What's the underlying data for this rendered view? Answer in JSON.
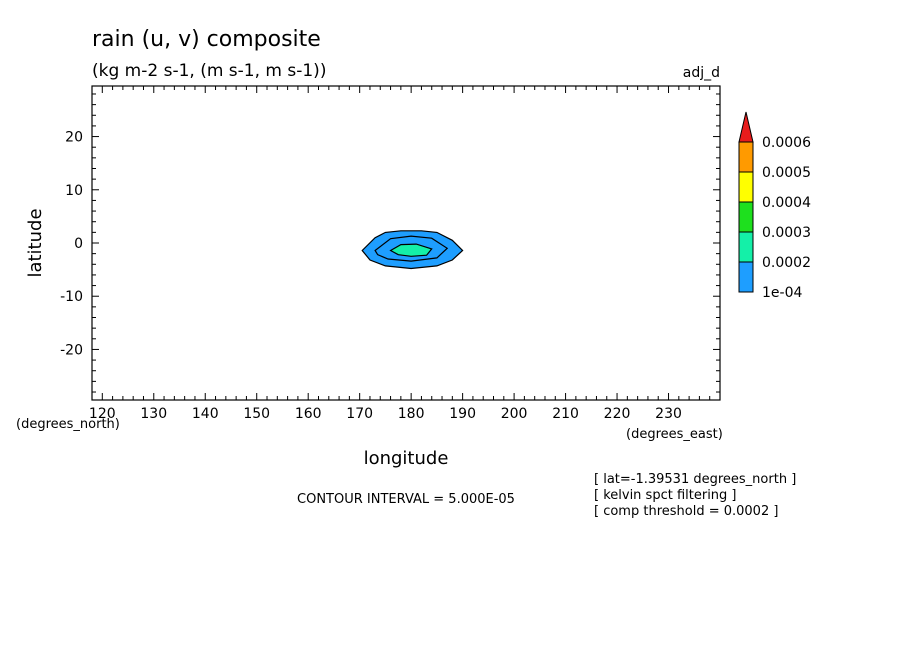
{
  "chart_data": {
    "type": "heatmap",
    "title": "rain (u, v) composite",
    "subtitle": "(kg m-2 s-1, (m s-1, m s-1))",
    "tag": "adj_d",
    "xlabel": "longitude",
    "ylabel": "latitude",
    "x_units": "(degrees_east)",
    "y_units": "(degrees_north)",
    "xlim": [
      118,
      240
    ],
    "ylim": [
      -29.5,
      29.5
    ],
    "x_ticks": [
      120,
      130,
      140,
      150,
      160,
      170,
      180,
      190,
      200,
      210,
      220,
      230
    ],
    "y_ticks": [
      20,
      10,
      0,
      -10,
      -20
    ],
    "contour_interval": "CONTOUR INTERVAL = 5.000E-05",
    "notes": [
      "[ lat=-1.39531 degrees_north ]",
      "[ kelvin spct filtering ]",
      "[ comp threshold = 0.0002 ]"
    ],
    "colorbar": {
      "levels": [
        "0.0006",
        "0.0005",
        "0.0004",
        "0.0003",
        "0.0002",
        "1e-04"
      ],
      "colors": [
        "#e81c1c",
        "#ff9a00",
        "#ffff00",
        "#1ee01e",
        "#14f0a8",
        "#1e9eff"
      ]
    },
    "contours": [
      {
        "level": 0.0001,
        "color": "#1e9eff",
        "points": [
          [
            170.5,
            -1.4
          ],
          [
            173,
            1
          ],
          [
            175,
            2
          ],
          [
            178,
            2.3
          ],
          [
            182,
            2.3
          ],
          [
            185,
            2
          ],
          [
            188,
            0.5
          ],
          [
            190,
            -1.4
          ],
          [
            188,
            -3.2
          ],
          [
            185,
            -4.3
          ],
          [
            180,
            -4.8
          ],
          [
            175,
            -4.3
          ],
          [
            172,
            -3.2
          ]
        ]
      },
      {
        "level": 0.00015,
        "color": "#1e9eff",
        "points": [
          [
            173,
            -1.4
          ],
          [
            176,
            0.8
          ],
          [
            180,
            1.3
          ],
          [
            184,
            0.9
          ],
          [
            187,
            -1
          ],
          [
            185,
            -2.8
          ],
          [
            180,
            -3.4
          ],
          [
            175.5,
            -3
          ],
          [
            173.5,
            -2.2
          ]
        ]
      },
      {
        "level": 0.0002,
        "color": "#14f0a8",
        "points": [
          [
            176,
            -1.4
          ],
          [
            178,
            -0.3
          ],
          [
            181,
            -0.2
          ],
          [
            184,
            -1.1
          ],
          [
            183,
            -2.3
          ],
          [
            180,
            -2.5
          ],
          [
            177.5,
            -2.2
          ]
        ]
      }
    ]
  }
}
